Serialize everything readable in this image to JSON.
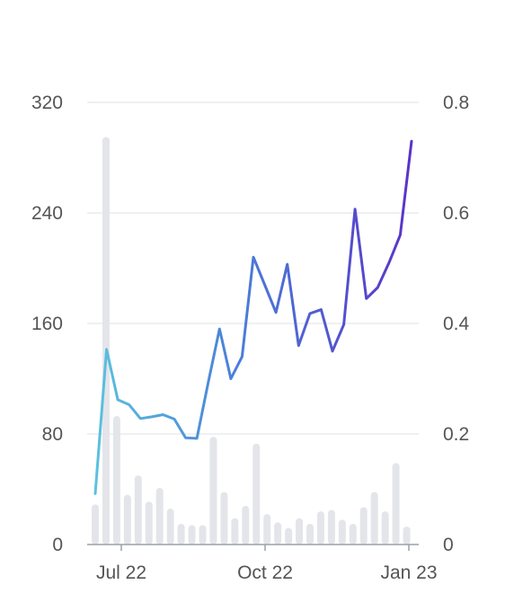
{
  "chart_data": {
    "type": "bar+line",
    "title": "",
    "xlabel": "",
    "ylabel_left": "",
    "ylabel_right": "",
    "left_axis": {
      "ticks": [
        "0",
        "80",
        "160",
        "240",
        "320"
      ],
      "range": [
        0,
        320
      ]
    },
    "right_axis": {
      "ticks": [
        "0",
        "0.2",
        "0.4",
        "0.6",
        "0.8"
      ],
      "range": [
        0,
        0.8
      ]
    },
    "x_ticks": [
      "Jul 22",
      "Oct 22",
      "Jan 23"
    ],
    "grid": true,
    "legend": "none",
    "colors": {
      "bar": "#e4e5ea",
      "line_start": "#5bc2dd",
      "line_mid": "#4a7fd8",
      "line_end": "#5a33c8",
      "grid": "#e6e6ea",
      "axis": "#9aa0a8",
      "text": "#555555"
    },
    "series": [
      {
        "kind": "bar",
        "axis": "left",
        "values": [
          29,
          295,
          93,
          36,
          50,
          31,
          41,
          26,
          15,
          14,
          14,
          78,
          38,
          19,
          28,
          73,
          22,
          16,
          12,
          19,
          15,
          24,
          25,
          18,
          15,
          27,
          38,
          24,
          59,
          13
        ]
      },
      {
        "kind": "line",
        "axis": "right",
        "values": [
          0.092,
          0.353,
          0.262,
          0.253,
          0.228,
          0.231,
          0.235,
          0.227,
          0.193,
          0.192,
          0.293,
          0.39,
          0.3,
          0.34,
          0.52,
          0.47,
          0.42,
          0.507,
          0.36,
          0.418,
          0.425,
          0.35,
          0.398,
          0.607,
          0.445,
          0.465,
          0.51,
          0.56,
          0.73
        ]
      }
    ]
  }
}
